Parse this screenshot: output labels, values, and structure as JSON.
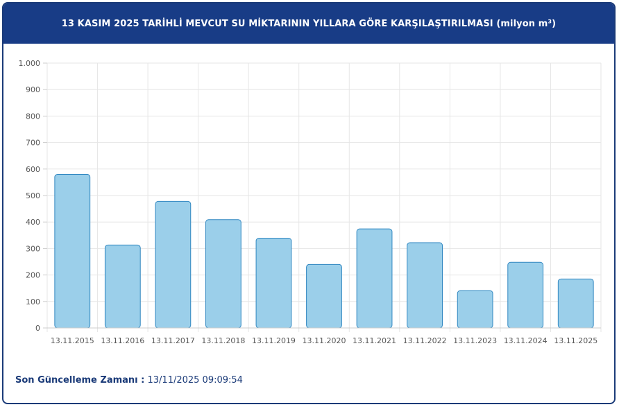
{
  "header": {
    "title": "13 KASIM 2025 TARİHLİ MEVCUT SU MİKTARININ YILLARA GÖRE KARŞILAŞTIRILMASI (milyon m³)"
  },
  "footer": {
    "label": "Son Güncelleme Zamanı :",
    "value": "13/11/2025 09:09:54"
  },
  "colors": {
    "header_bg": "#183c86",
    "bar_fill": "#9bcfea",
    "bar_stroke": "#2f86c0",
    "grid": "#e6e6e6"
  },
  "chart_data": {
    "type": "bar",
    "title": "13 KASIM 2025 TARİHLİ MEVCUT SU MİKTARININ YILLARA GÖRE KARŞILAŞTIRILMASI (milyon m³)",
    "categories": [
      "13.11.2015",
      "13.11.2016",
      "13.11.2017",
      "13.11.2018",
      "13.11.2019",
      "13.11.2020",
      "13.11.2021",
      "13.11.2022",
      "13.11.2023",
      "13.11.2024",
      "13.11.2025"
    ],
    "values": [
      580,
      313,
      478,
      409,
      339,
      240,
      374,
      322,
      141,
      248,
      185
    ],
    "ylim": [
      0,
      1000
    ],
    "yticks": [
      0,
      100,
      200,
      300,
      400,
      500,
      600,
      700,
      800,
      900,
      1000
    ],
    "ytick_labels": [
      "0",
      "100",
      "200",
      "300",
      "400",
      "500",
      "600",
      "700",
      "800",
      "900",
      "1.000"
    ],
    "grid": true,
    "xlabel": "",
    "ylabel": ""
  }
}
